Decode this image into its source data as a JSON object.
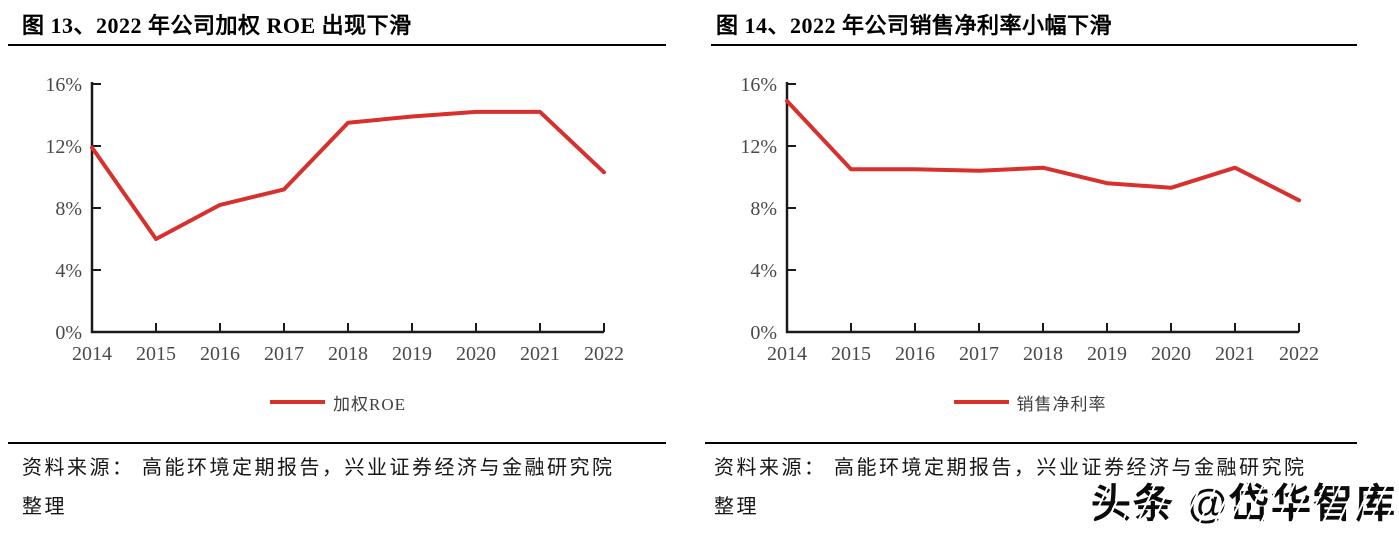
{
  "page": {
    "background": "#ffffff"
  },
  "watermark": {
    "text": "头条 @岱华智库"
  },
  "panels": [
    {
      "title": "图 13、2022 年公司加权 ROE 出现下滑",
      "source_line1": "资料来源： 高能环境定期报告，兴业证券经济与金融研究院",
      "source_line2": "整理"
    },
    {
      "title": "图 14、2022 年公司销售净利率小幅下滑",
      "source_line1": "资料来源： 高能环境定期报告，兴业证券经济与金融研究院",
      "source_line2": "整理"
    }
  ],
  "chart_data": [
    {
      "type": "line",
      "title": "图 13、2022 年公司加权 ROE 出现下滑",
      "categories": [
        "2014",
        "2015",
        "2016",
        "2017",
        "2018",
        "2019",
        "2020",
        "2021",
        "2022"
      ],
      "series": [
        {
          "name": "加权ROE",
          "values": [
            11.9,
            6.0,
            8.2,
            9.2,
            13.5,
            13.9,
            14.2,
            14.2,
            10.3
          ]
        }
      ],
      "xlabel": "",
      "ylabel": "",
      "ylim": [
        0,
        16
      ],
      "yticks_percent": [
        0,
        4,
        8,
        12,
        16
      ],
      "ytick_labels": [
        "0%",
        "4%",
        "8%",
        "12%",
        "16%"
      ],
      "grid": false,
      "legend_position": "bottom",
      "line_color": "#d7312e",
      "axis_color": "#1a1a1a",
      "tick_label_color": "#4a4a4a"
    },
    {
      "type": "line",
      "title": "图 14、2022 年公司销售净利率小幅下滑",
      "categories": [
        "2014",
        "2015",
        "2016",
        "2017",
        "2018",
        "2019",
        "2020",
        "2021",
        "2022"
      ],
      "series": [
        {
          "name": "销售净利率",
          "values": [
            14.9,
            10.5,
            10.5,
            10.4,
            10.6,
            9.6,
            9.3,
            10.6,
            8.5
          ]
        }
      ],
      "xlabel": "",
      "ylabel": "",
      "ylim": [
        0,
        16
      ],
      "yticks_percent": [
        0,
        4,
        8,
        12,
        16
      ],
      "ytick_labels": [
        "0%",
        "4%",
        "8%",
        "12%",
        "16%"
      ],
      "grid": false,
      "legend_position": "bottom",
      "line_color": "#d7312e",
      "axis_color": "#1a1a1a",
      "tick_label_color": "#4a4a4a"
    }
  ]
}
